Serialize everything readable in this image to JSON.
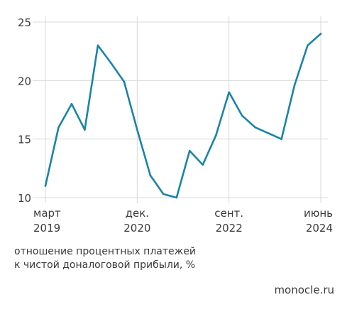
{
  "chart_data": {
    "type": "line",
    "title": "",
    "x_ticks": [
      {
        "month": "март",
        "year": "2019",
        "x": 0
      },
      {
        "month": "дек.",
        "year": "2020",
        "x": 7
      },
      {
        "month": "сент.",
        "year": "2022",
        "x": 14
      },
      {
        "month": "июнь",
        "year": "2024",
        "x": 21
      }
    ],
    "x": [
      0,
      1,
      2,
      3,
      4,
      5,
      6,
      7,
      8,
      9,
      10,
      11,
      12,
      13,
      14,
      15,
      16,
      17,
      18,
      19,
      20,
      21
    ],
    "series": [
      {
        "values": [
          11,
          16,
          18,
          15.8,
          23,
          21.5,
          19.9,
          15.8,
          11.9,
          10.3,
          10.0,
          14.0,
          12.8,
          15.3,
          19.0,
          17.0,
          16.0,
          15.5,
          15.0,
          19.6,
          23.0,
          24.0
        ]
      }
    ],
    "y_ticks": [
      10,
      15,
      20,
      25
    ],
    "ylim": [
      10,
      25
    ],
    "xlim": [
      0,
      21
    ],
    "grid": true,
    "line_color": "#1a84a8",
    "grid_color": "#d9d9d9"
  },
  "caption": {
    "line1": "отношение процентных платежей",
    "line2": "к чистой доналоговой прибыли, %"
  },
  "source": "monocle.ru"
}
